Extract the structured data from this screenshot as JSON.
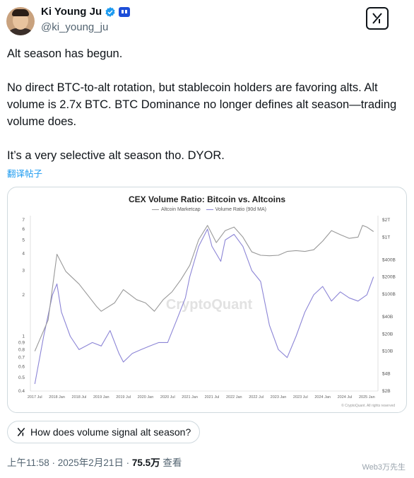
{
  "user": {
    "name": "Ki Young Ju",
    "handle": "@ki_young_ju"
  },
  "tweet": {
    "lines": [
      "Alt season has begun.",
      "No direct BTC-to-alt rotation, but stablecoin holders are favoring alts. Alt volume is 2.7x BTC. BTC Dominance no longer defines alt season—trading volume does.",
      "It’s a very selective alt season tho. DYOR."
    ],
    "translate": "翻译帖子"
  },
  "chart_data": {
    "type": "line",
    "title": "CEX Volume Ratio: Bitcoin vs. Altcoins",
    "watermark": "CryptoQuant",
    "credit": "© CryptoQuant. All rights reserved",
    "legend": [
      "Altcoin Marketcap",
      "Volume Ratio (90d MA)"
    ],
    "x_ticks": [
      "2017 Jul",
      "2018 Jan",
      "2018 Jul",
      "2019 Jan",
      "2019 Jul",
      "2020 Jan",
      "2020 Jul",
      "2021 Jan",
      "2021 Jul",
      "2022 Jan",
      "2022 Jul",
      "2023 Jan",
      "2023 Jul",
      "2024 Jan",
      "2024 Jul",
      "2025 Jan"
    ],
    "left_ticks": [
      "7",
      "6",
      "5",
      "4",
      "3",
      "2",
      "1",
      "0.9",
      "0.8",
      "0.7",
      "0.6",
      "0.5",
      "0.4"
    ],
    "right_ticks": [
      "$2T",
      "$1T",
      "$400B",
      "$200B",
      "$100B",
      "$40B",
      "$20B",
      "$10B",
      "$4B",
      "$2B"
    ],
    "grid": false,
    "series": [
      {
        "name": "Volume Ratio (90d MA)",
        "axis": "left",
        "color": "#8c85d6",
        "x": [
          2017.5,
          2017.7,
          2017.9,
          2018.0,
          2018.1,
          2018.3,
          2018.5,
          2018.8,
          2019.0,
          2019.2,
          2019.4,
          2019.5,
          2019.7,
          2019.9,
          2020.1,
          2020.3,
          2020.5,
          2020.7,
          2020.9,
          2021.0,
          2021.2,
          2021.4,
          2021.5,
          2021.7,
          2021.8,
          2022.0,
          2022.2,
          2022.4,
          2022.6,
          2022.8,
          2023.0,
          2023.2,
          2023.4,
          2023.6,
          2023.8,
          2024.0,
          2024.2,
          2024.4,
          2024.6,
          2024.8,
          2025.0,
          2025.15
        ],
        "values": [
          0.45,
          1.0,
          2.0,
          2.4,
          1.5,
          1.0,
          0.8,
          0.9,
          0.85,
          1.1,
          0.75,
          0.65,
          0.75,
          0.8,
          0.85,
          0.9,
          0.9,
          1.3,
          1.9,
          2.7,
          4.5,
          6.0,
          4.5,
          3.5,
          5.0,
          5.5,
          4.5,
          3.0,
          2.5,
          1.2,
          0.8,
          0.7,
          1.0,
          1.5,
          2.0,
          2.3,
          1.8,
          2.1,
          1.9,
          1.8,
          2.0,
          2.7
        ]
      },
      {
        "name": "Altcoin Marketcap",
        "axis": "right",
        "color": "#999999",
        "x": [
          2017.5,
          2017.8,
          2018.0,
          2018.2,
          2018.5,
          2018.9,
          2019.0,
          2019.3,
          2019.5,
          2019.8,
          2020.0,
          2020.2,
          2020.4,
          2020.6,
          2020.8,
          2021.0,
          2021.2,
          2021.4,
          2021.6,
          2021.8,
          2022.0,
          2022.2,
          2022.4,
          2022.6,
          2022.8,
          2023.0,
          2023.2,
          2023.4,
          2023.6,
          2023.8,
          2024.0,
          2024.2,
          2024.4,
          2024.6,
          2024.8,
          2024.9,
          2025.0,
          2025.15
        ],
        "values": [
          10,
          35,
          500,
          250,
          150,
          60,
          50,
          70,
          120,
          80,
          70,
          50,
          80,
          110,
          180,
          320,
          900,
          1600,
          800,
          1300,
          1500,
          1000,
          550,
          480,
          470,
          480,
          560,
          580,
          560,
          600,
          850,
          1300,
          1100,
          950,
          1000,
          1600,
          1500,
          1250
        ]
      }
    ]
  },
  "pill": {
    "text": "How does volume signal alt season?"
  },
  "meta": {
    "time": "上午11:58 · 2025年2月21日 · ",
    "views": "75.5万",
    "views_label": " 查看"
  },
  "watermark": "Web3万先生"
}
